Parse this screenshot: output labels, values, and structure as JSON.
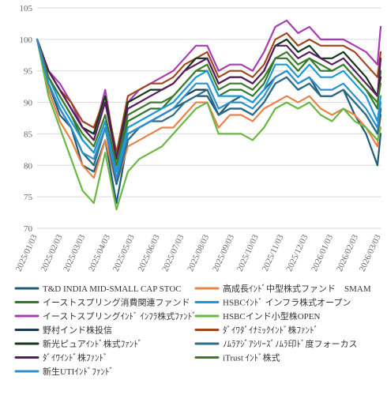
{
  "chart_data": {
    "type": "line",
    "title": "",
    "xlabel": "",
    "ylabel": "",
    "ylim": [
      70,
      105
    ],
    "yticks": [
      70,
      75,
      80,
      85,
      90,
      95,
      100,
      105
    ],
    "grid": "horizontal",
    "legend_placement": "bottom",
    "x": [
      "2025/01/03",
      "2025/01/17",
      "2025/01/31",
      "2025/02/14",
      "2025/02/28",
      "2025/03/14",
      "2025/03/28",
      "2025/04/11",
      "2025/04/25",
      "2025/05/09",
      "2025/05/23",
      "2025/06/06",
      "2025/06/20",
      "2025/07/04",
      "2025/07/18",
      "2025/08/01",
      "2025/08/15",
      "2025/08/29",
      "2025/09/12",
      "2025/09/26",
      "2025/10/10",
      "2025/10/24",
      "2025/11/07",
      "2025/11/21",
      "2025/12/05",
      "2025/12/19",
      "2026/01/02",
      "2026/01/16",
      "2026/01/30",
      "2026/02/13",
      "2026/02/27",
      "2026/03/03"
    ],
    "xticks": [
      "2025/01/03",
      "2025/02/03",
      "2025/03/03",
      "2025/04/03",
      "2025/05/03",
      "2025/06/03",
      "2025/07/03",
      "2025/08/03",
      "2025/09/03",
      "2025/10/03",
      "2025/11/03",
      "2025/12/03",
      "2026/01/03",
      "2026/02/03",
      "2026/03/03"
    ],
    "series": [
      {
        "name": "T&D INDIA MID-SMALL CAP STOC",
        "color": "#1f5c7a",
        "values": [
          100,
          93,
          88,
          86,
          80,
          79,
          84,
          74,
          84,
          86,
          87,
          88,
          89,
          90,
          91,
          91,
          88,
          90,
          91,
          90,
          92,
          94,
          95,
          93,
          94,
          91,
          91,
          92,
          88,
          85,
          80,
          85
        ]
      },
      {
        "name": "高成長ｲﾝﾄﾞ中型株式ファンド　SMAM",
        "color": "#e8834a",
        "values": [
          100,
          92,
          87,
          84,
          80,
          78,
          84,
          77,
          83,
          84,
          85,
          86,
          86,
          88,
          90,
          90,
          86,
          88,
          88,
          87,
          89,
          90,
          91,
          90,
          91,
          89,
          88,
          89,
          88,
          86,
          83,
          88
        ]
      },
      {
        "name": "イーストスプリング消費関連ファンド",
        "color": "#2d7a2d",
        "values": [
          100,
          94,
          91,
          88,
          84,
          82,
          87,
          79,
          87,
          88,
          89,
          89,
          91,
          93,
          95,
          95,
          91,
          92,
          92,
          91,
          93,
          97,
          97,
          95,
          97,
          95,
          95,
          96,
          94,
          92,
          89,
          95
        ]
      },
      {
        "name": "HSBCｲﾝﾄﾞ インフラ株式オープン",
        "color": "#1a9ad6",
        "values": [
          100,
          94,
          90,
          87,
          84,
          82,
          87,
          79,
          86,
          87,
          88,
          89,
          90,
          92,
          94,
          95,
          91,
          91,
          91,
          90,
          92,
          96,
          96,
          94,
          96,
          94,
          94,
          95,
          93,
          91,
          87,
          91
        ]
      },
      {
        "name": "イーストスプリングｲﾝﾄﾞ ｲﾝﾌﾗ株式ﾌｧﾝﾄﾞ",
        "color": "#a83cb4",
        "values": [
          100,
          95,
          93,
          90,
          86,
          85,
          92,
          81,
          90,
          92,
          93,
          94,
          95,
          97,
          99,
          99,
          95,
          96,
          96,
          95,
          98,
          102,
          103,
          101,
          102,
          100,
          100,
          100,
          99,
          98,
          96,
          102
        ]
      },
      {
        "name": "HSBCインド小型株OPEN",
        "color": "#6ab844",
        "values": [
          100,
          91,
          86,
          81,
          76,
          74,
          82,
          73,
          79,
          81,
          82,
          83,
          85,
          87,
          89,
          90,
          85,
          85,
          85,
          84,
          86,
          89,
          90,
          89,
          90,
          88,
          87,
          89,
          87,
          86,
          84,
          86
        ]
      },
      {
        "name": "野村インド株投信",
        "color": "#1a3a52",
        "values": [
          100,
          93,
          89,
          86,
          82,
          80,
          86,
          77,
          85,
          86,
          87,
          88,
          89,
          91,
          92,
          92,
          88,
          89,
          89,
          88,
          90,
          93,
          94,
          92,
          93,
          91,
          91,
          92,
          90,
          88,
          85,
          89
        ]
      },
      {
        "name": "ﾀﾞｲﾜﾀﾞｲﾅﾐｯｸｲﾝﾄﾞ株ﾌｧﾝﾄﾞ",
        "color": "#a0461e",
        "values": [
          100,
          95,
          92,
          90,
          87,
          86,
          91,
          82,
          91,
          92,
          93,
          93,
          94,
          96,
          97,
          98,
          94,
          95,
          95,
          94,
          96,
          100,
          101,
          99,
          100,
          99,
          99,
          99,
          98,
          96,
          94,
          98
        ]
      },
      {
        "name": "新光ピュアｲﾝﾄﾞ株式ﾌｧﾝﾄﾞ",
        "color": "#14361a",
        "values": [
          100,
          95,
          92,
          89,
          86,
          85,
          91,
          81,
          90,
          91,
          92,
          92,
          93,
          95,
          97,
          97,
          93,
          94,
          94,
          93,
          95,
          99,
          100,
          98,
          99,
          97,
          97,
          98,
          96,
          94,
          91,
          94
        ]
      },
      {
        "name": "ﾉﾑﾗｱｼﾞｱｼﾘｰｽﾞﾉﾑﾗ印ﾄﾞ度フォーカス",
        "color": "#2a6e8a",
        "values": [
          100,
          93,
          89,
          86,
          82,
          80,
          86,
          77,
          84,
          86,
          87,
          87,
          88,
          90,
          91,
          92,
          88,
          89,
          89,
          88,
          90,
          93,
          94,
          92,
          93,
          91,
          91,
          92,
          90,
          88,
          85,
          88
        ]
      },
      {
        "name": "ﾀﾞｲﾜｲﾝﾄﾞ株ﾌｧﾝﾄﾞ",
        "color": "#5a1c5e",
        "values": [
          100,
          95,
          92,
          89,
          86,
          84,
          90,
          81,
          89,
          90,
          91,
          92,
          93,
          95,
          96,
          97,
          93,
          94,
          94,
          93,
          95,
          99,
          99,
          97,
          98,
          97,
          96,
          97,
          95,
          93,
          91,
          97
        ]
      },
      {
        "name": "iTrust ｲﾝﾄﾞ株式",
        "color": "#3e7a2a",
        "values": [
          100,
          94,
          91,
          88,
          85,
          83,
          88,
          80,
          88,
          89,
          90,
          90,
          91,
          93,
          95,
          96,
          92,
          93,
          93,
          92,
          94,
          97,
          98,
          96,
          97,
          96,
          95,
          96,
          94,
          92,
          90,
          93
        ]
      },
      {
        "name": "新生UTIｲﾝﾄﾞﾌｧﾝﾄﾞ",
        "color": "#2e8fcf",
        "values": [
          100,
          93,
          89,
          86,
          82,
          81,
          86,
          78,
          85,
          86,
          87,
          88,
          89,
          91,
          93,
          93,
          89,
          90,
          90,
          89,
          91,
          94,
          95,
          93,
          94,
          92,
          92,
          93,
          91,
          89,
          86,
          90
        ]
      }
    ]
  }
}
